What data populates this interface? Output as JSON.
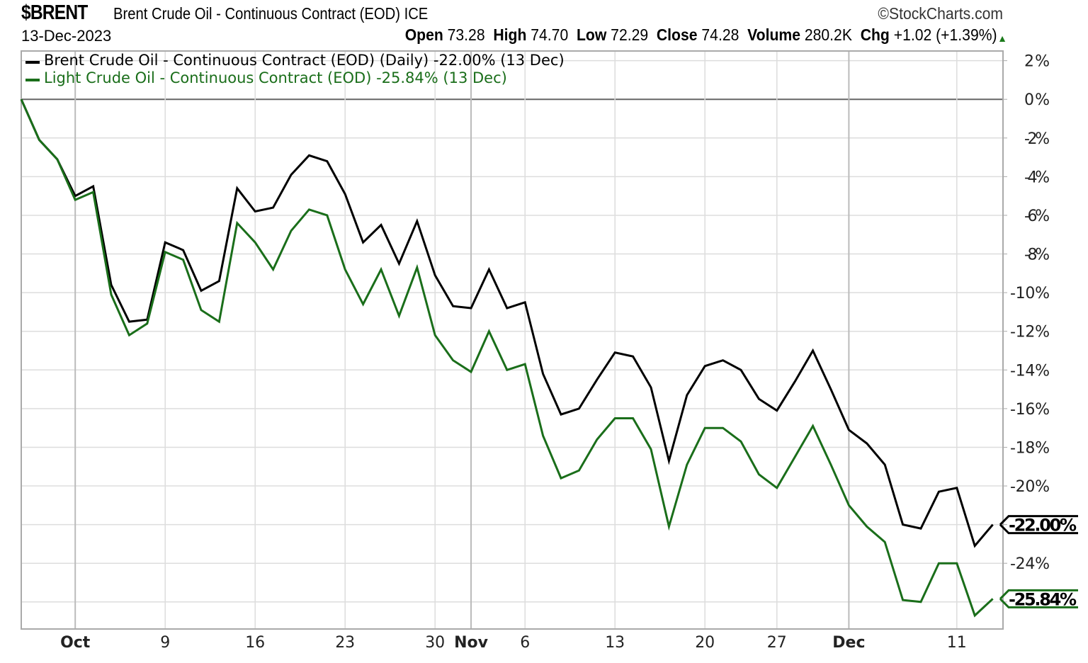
{
  "header": {
    "symbol": "$BRENT",
    "name": "Brent Crude Oil - Continuous Contract (EOD) ICE",
    "credit": "©StockCharts.com",
    "date": "13-Dec-2023",
    "open_label": "Open",
    "open": "73.28",
    "high_label": "High",
    "high": "74.70",
    "low_label": "Low",
    "low": "72.29",
    "close_label": "Close",
    "close": "74.28",
    "volume_label": "Volume",
    "volume": "280.2K",
    "chg_label": "Chg",
    "chg": "+1.02 (+1.39%)",
    "chg_direction": "up-arrow-icon"
  },
  "chart_data": {
    "type": "line",
    "ylim": [
      -27.4,
      2.5
    ],
    "y_ticks": [
      2,
      0,
      -2,
      -4,
      -6,
      -8,
      -10,
      -12,
      -14,
      -16,
      -18,
      -20,
      -22,
      -24,
      -26
    ],
    "y_tick_labels": [
      "2%",
      "0%",
      "-2%",
      "-4%",
      "-6%",
      "-8%",
      "-10%",
      "-12%",
      "-14%",
      "-16%",
      "-18%",
      "-20%",
      "",
      "-24%",
      ""
    ],
    "x_tick_labels": [
      {
        "date": "Oct 2",
        "label": "Oct",
        "bold": true
      },
      {
        "date": "Oct 9",
        "label": "9"
      },
      {
        "date": "Oct 16",
        "label": "16"
      },
      {
        "date": "Oct 23",
        "label": "23"
      },
      {
        "date": "Oct 30",
        "label": "30"
      },
      {
        "date": "Nov 1",
        "label": "Nov",
        "bold": true
      },
      {
        "date": "Nov 6",
        "label": "6"
      },
      {
        "date": "Nov 13",
        "label": "13"
      },
      {
        "date": "Nov 20",
        "label": "20"
      },
      {
        "date": "Nov 27",
        "label": "27"
      },
      {
        "date": "Dec 1",
        "label": "Dec",
        "bold": true
      },
      {
        "date": "Dec 11",
        "label": "11"
      }
    ],
    "grid": true,
    "legend_position": "top-left",
    "x": [
      "Sep 27",
      "Sep 28",
      "Sep 29",
      "Oct 2",
      "Oct 3",
      "Oct 4",
      "Oct 5",
      "Oct 6",
      "Oct 9",
      "Oct 10",
      "Oct 11",
      "Oct 12",
      "Oct 13",
      "Oct 16",
      "Oct 17",
      "Oct 18",
      "Oct 19",
      "Oct 20",
      "Oct 23",
      "Oct 24",
      "Oct 25",
      "Oct 26",
      "Oct 27",
      "Oct 30",
      "Oct 31",
      "Nov 1",
      "Nov 2",
      "Nov 3",
      "Nov 6",
      "Nov 7",
      "Nov 8",
      "Nov 9",
      "Nov 10",
      "Nov 13",
      "Nov 14",
      "Nov 15",
      "Nov 16",
      "Nov 17",
      "Nov 20",
      "Nov 21",
      "Nov 22",
      "Nov 24",
      "Nov 27",
      "Nov 28",
      "Nov 29",
      "Nov 30",
      "Dec 1",
      "Dec 4",
      "Dec 5",
      "Dec 6",
      "Dec 7",
      "Dec 8",
      "Dec 11",
      "Dec 12",
      "Dec 13"
    ],
    "series": [
      {
        "name": "Brent Crude Oil - Continuous Contract (EOD) (Daily) -22.00% (13 Dec)",
        "color": "#000000",
        "last_label": "-22.00%",
        "values": [
          0,
          -2.1,
          -3.1,
          -5.0,
          -4.5,
          -9.6,
          -11.5,
          -11.4,
          -7.4,
          -7.8,
          -9.9,
          -9.4,
          -4.6,
          -5.8,
          -5.6,
          -3.9,
          -2.9,
          -3.2,
          -4.9,
          -7.4,
          -6.5,
          -8.5,
          -6.3,
          -9.1,
          -10.7,
          -10.8,
          -8.8,
          -10.8,
          -10.5,
          -14.2,
          -16.3,
          -16.0,
          -14.5,
          -13.1,
          -13.3,
          -14.9,
          -18.7,
          -15.3,
          -13.8,
          -13.5,
          -14.0,
          -15.5,
          -16.1,
          -14.6,
          -13.0,
          -15.0,
          -17.1,
          -17.8,
          -18.9,
          -22.0,
          -22.2,
          -20.3,
          -20.1,
          -23.1,
          -22.0
        ]
      },
      {
        "name": "Light Crude Oil - Continuous Contract (EOD) -25.84% (13 Dec)",
        "color": "#1a6e1a",
        "last_label": "-25.84%",
        "values": [
          0,
          -2.1,
          -3.1,
          -5.2,
          -4.8,
          -10.1,
          -12.2,
          -11.6,
          -7.9,
          -8.3,
          -10.9,
          -11.5,
          -6.4,
          -7.4,
          -8.8,
          -6.8,
          -5.7,
          -6.0,
          -8.8,
          -10.6,
          -8.8,
          -11.2,
          -8.7,
          -12.2,
          -13.5,
          -14.1,
          -12.0,
          -14.0,
          -13.7,
          -17.4,
          -19.6,
          -19.2,
          -17.6,
          -16.5,
          -16.5,
          -18.1,
          -22.1,
          -18.9,
          -17.0,
          -17.0,
          -17.7,
          -19.4,
          -20.1,
          -18.5,
          -16.9,
          -18.9,
          -21.0,
          -22.1,
          -22.9,
          -25.9,
          -26.0,
          -24.0,
          -24.0,
          -26.7,
          -25.84
        ]
      }
    ]
  }
}
